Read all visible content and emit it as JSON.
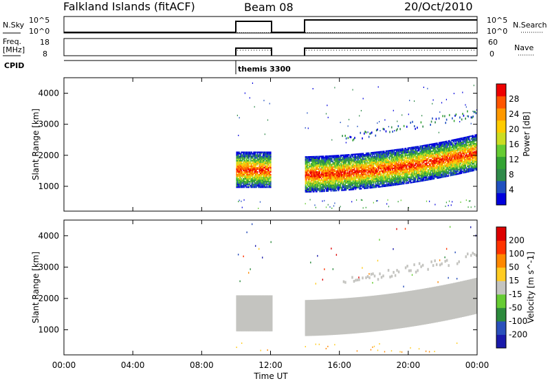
{
  "header": {
    "station": "Falkland Islands (fitACF)",
    "beam": "Beam 08",
    "date": "20/Oct/2010"
  },
  "top_panels": {
    "nsky_label": "N.Sky",
    "nsearch_label": "N.Search",
    "nsky_ticks": [
      "10^5",
      "10^0"
    ],
    "nsearch_ticks": [
      "10^5",
      "10^0"
    ],
    "freq_label_1": "Freq.",
    "freq_label_2": "[MHz]",
    "freq_ticks": [
      "18",
      "8"
    ],
    "nave_label": "Nave",
    "nave_ticks": [
      "60",
      "0"
    ],
    "cpid_label": "CPID",
    "cpid_name": "themis 3300"
  },
  "chart_data": [
    {
      "type": "heatmap",
      "name": "power",
      "ylabel": "Slant Range [km]",
      "ylim": [
        200,
        4500
      ],
      "yticks": [
        1000,
        2000,
        3000,
        4000
      ],
      "colorbar_label": "Power [dB]",
      "colorbar_ticks": [
        "28",
        "24",
        "20",
        "16",
        "12",
        "8",
        "4"
      ],
      "colors": [
        "#0000dd",
        "#2050c0",
        "#2f8a4a",
        "#33a333",
        "#66cc33",
        "#ccdd22",
        "#ffcc00",
        "#ff9900",
        "#ff5500",
        "#ee0000"
      ],
      "data_segments_hours": [
        [
          10.0,
          12.0
        ],
        [
          14.0,
          24.0
        ]
      ]
    },
    {
      "type": "heatmap",
      "name": "velocity",
      "ylabel": "Slant Range [km]",
      "ylim": [
        200,
        4500
      ],
      "yticks": [
        1000,
        2000,
        3000,
        4000
      ],
      "colorbar_label": "Velocity [m s^-1]",
      "colorbar_ticks": [
        "200",
        "100",
        "50",
        "15",
        "-15",
        "-50",
        "-100",
        "-200"
      ],
      "colors": [
        "#1a1aaa",
        "#2a50bb",
        "#2c8a3c",
        "#66cc33",
        "#c4c4c0",
        "#ffcc22",
        "#ff8800",
        "#ff3300",
        "#dd0000"
      ],
      "data_segments_hours": [
        [
          10.0,
          12.0
        ],
        [
          14.0,
          24.0
        ]
      ]
    }
  ],
  "xaxis": {
    "label": "Time UT",
    "ticks": [
      "00:00",
      "04:00",
      "08:00",
      "12:00",
      "16:00",
      "20:00",
      "00:00"
    ],
    "range_hours": [
      0,
      24
    ]
  }
}
